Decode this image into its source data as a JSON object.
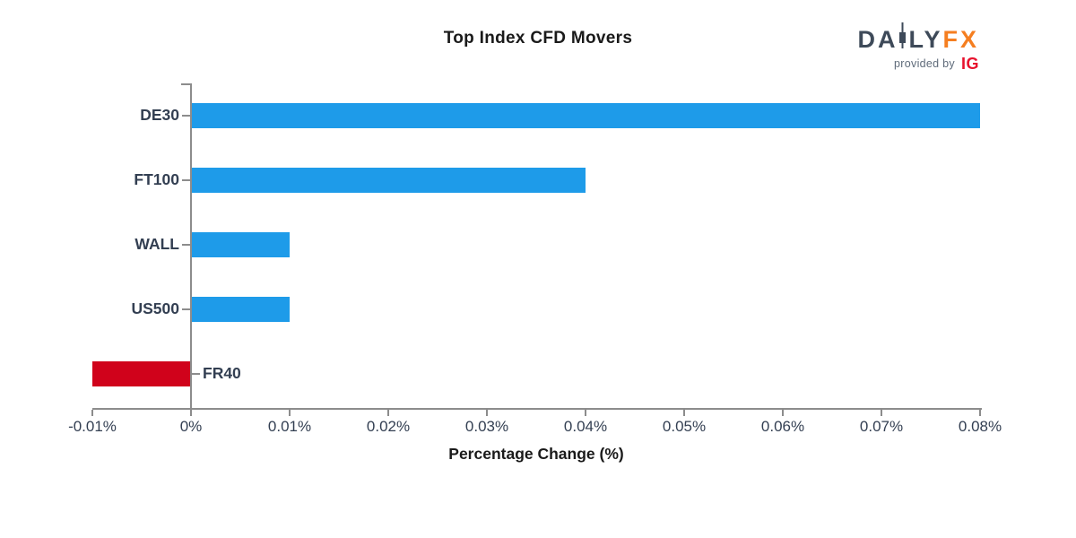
{
  "logo": {
    "daily_prefix": "DA",
    "daily_suffix": "LY",
    "fx": "FX",
    "provided_by": "provided by",
    "ig": "IG"
  },
  "chart_data": {
    "type": "bar",
    "orientation": "horizontal",
    "title": "Top Index CFD Movers",
    "xlabel": "Percentage Change (%)",
    "categories": [
      "DE30",
      "FT100",
      "WALL",
      "US500",
      "FR40"
    ],
    "values": [
      0.08,
      0.04,
      0.01,
      0.01,
      -0.01
    ],
    "unit": "%",
    "xlim": [
      -0.01,
      0.08
    ],
    "xticks": [
      -0.01,
      0,
      0.01,
      0.02,
      0.03,
      0.04,
      0.05,
      0.06,
      0.07,
      0.08
    ],
    "xtick_labels": [
      "-0.01%",
      "0%",
      "0.01%",
      "0.02%",
      "0.03%",
      "0.04%",
      "0.05%",
      "0.06%",
      "0.07%",
      "0.08%"
    ],
    "grid": false,
    "legend": false,
    "colors": {
      "bar_positive": "#1E9BE9",
      "bar_negative": "#D0021B",
      "axis_line": "#8C8C8C",
      "tick_label": "#333F52",
      "category_label": "#333F52",
      "title": "#1A1A1A",
      "xlabel": "#1A1A1A",
      "logo_daily": "#3E4A59",
      "logo_fx": "#F57E20",
      "logo_provided_by": "#5F6B7A",
      "logo_ig": "#E8112D"
    }
  }
}
